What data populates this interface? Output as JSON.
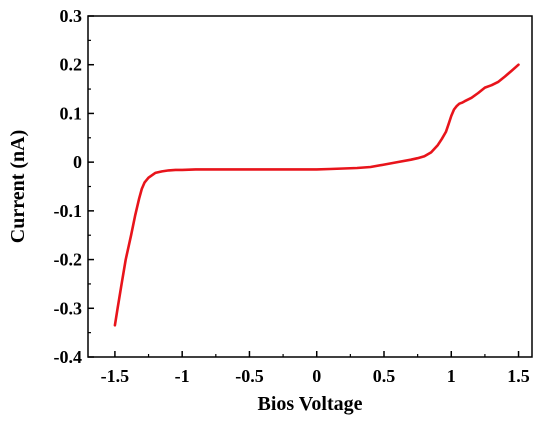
{
  "chart_data": {
    "type": "line",
    "title": "",
    "xlabel": "Bios Voltage",
    "ylabel": "Current (nA)",
    "xlim": [
      -1.7,
      1.6
    ],
    "ylim": [
      -0.4,
      0.3
    ],
    "x_ticks": [
      -1.5,
      -1,
      -0.5,
      0,
      0.5,
      1,
      1.5
    ],
    "x_tick_labels": [
      "-1.5",
      "-1",
      "-0.5",
      "0",
      "0.5",
      "1",
      "1.5"
    ],
    "y_ticks": [
      -0.4,
      -0.3,
      -0.2,
      -0.1,
      0,
      0.1,
      0.2,
      0.3
    ],
    "y_tick_labels": [
      "-0.4",
      "-0.3",
      "-0.2",
      "-0.1",
      "0",
      "0.1",
      "0.2",
      "0.3"
    ],
    "grid": false,
    "legend": "none",
    "series": [
      {
        "color": "#e8141b",
        "x": [
          -1.5,
          -1.48,
          -1.45,
          -1.42,
          -1.38,
          -1.35,
          -1.32,
          -1.3,
          -1.28,
          -1.25,
          -1.22,
          -1.2,
          -1.15,
          -1.1,
          -1.05,
          -1.0,
          -0.9,
          -0.8,
          -0.6,
          -0.4,
          -0.2,
          0.0,
          0.1,
          0.2,
          0.3,
          0.4,
          0.5,
          0.6,
          0.7,
          0.75,
          0.8,
          0.85,
          0.9,
          0.93,
          0.96,
          0.98,
          1.0,
          1.02,
          1.04,
          1.06,
          1.08,
          1.1,
          1.15,
          1.2,
          1.25,
          1.3,
          1.35,
          1.4,
          1.45,
          1.5
        ],
        "y": [
          -0.335,
          -0.3,
          -0.25,
          -0.2,
          -0.15,
          -0.11,
          -0.075,
          -0.055,
          -0.042,
          -0.032,
          -0.026,
          -0.022,
          -0.019,
          -0.017,
          -0.016,
          -0.016,
          -0.015,
          -0.015,
          -0.015,
          -0.015,
          -0.015,
          -0.015,
          -0.014,
          -0.013,
          -0.012,
          -0.01,
          -0.005,
          0.0,
          0.005,
          0.008,
          0.012,
          0.02,
          0.035,
          0.048,
          0.062,
          0.078,
          0.095,
          0.108,
          0.115,
          0.12,
          0.122,
          0.125,
          0.132,
          0.142,
          0.153,
          0.158,
          0.165,
          0.176,
          0.188,
          0.2
        ]
      }
    ]
  }
}
